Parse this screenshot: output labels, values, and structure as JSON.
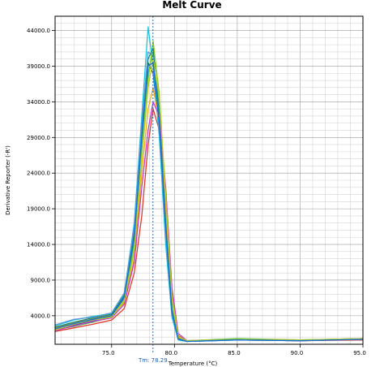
{
  "chart_data": {
    "type": "line",
    "title": "Melt Curve",
    "xlabel": "Temperature (°C)",
    "ylabel": "Derivative Reporter (-R')",
    "xlim": [
      70.5,
      95.0
    ],
    "ylim": [
      0,
      46000
    ],
    "x_ticks": [
      75.0,
      80.0,
      85.0,
      90.0,
      95.0
    ],
    "x_tick_labels": [
      "75.0",
      "80.0",
      "85.0",
      "90.0",
      "95.0"
    ],
    "y_ticks": [
      4000,
      9000,
      14000,
      19000,
      24000,
      29000,
      34000,
      39000,
      44000
    ],
    "y_tick_labels": [
      "4000.0",
      "9000.0",
      "14000.0",
      "19000.0",
      "24000.0",
      "29000.0",
      "34000.0",
      "39000.0",
      "44000.0"
    ],
    "grid": true,
    "legend": "none",
    "tm_marker": {
      "value": 78.29,
      "label": "Tm: 78.29"
    },
    "series": [
      {
        "color": "#2fbf3f",
        "x": [
          70.5,
          72,
          73.5,
          75,
          76,
          76.8,
          77.4,
          77.9,
          78.3,
          78.8,
          79.3,
          79.8,
          80.3,
          81,
          85,
          90,
          95
        ],
        "y": [
          2000,
          2500,
          3100,
          3800,
          6000,
          14500,
          28000,
          38000,
          41000,
          33000,
          18000,
          5000,
          800,
          500,
          800,
          600,
          800
        ]
      },
      {
        "color": "#3b3bbf",
        "x": [
          70.5,
          72,
          73.5,
          75,
          76,
          76.8,
          77.4,
          77.9,
          78.3,
          78.8,
          79.3,
          79.8,
          80.3,
          81,
          85,
          90,
          95
        ],
        "y": [
          2200,
          2700,
          3300,
          4000,
          6500,
          16000,
          30000,
          39500,
          38000,
          30000,
          16000,
          4500,
          700,
          400,
          700,
          500,
          700
        ]
      },
      {
        "color": "#e03a2a",
        "x": [
          70.5,
          72,
          73.5,
          75,
          76,
          76.8,
          77.4,
          77.9,
          78.3,
          78.8,
          79.3,
          79.8,
          80.3,
          81,
          85,
          90,
          95
        ],
        "y": [
          1800,
          2300,
          2800,
          3400,
          5000,
          10000,
          18000,
          28000,
          33000,
          30000,
          20000,
          7000,
          1200,
          500,
          600,
          500,
          600
        ]
      },
      {
        "color": "#19c4e0",
        "x": [
          70.5,
          72,
          73.5,
          75,
          76,
          76.8,
          77.4,
          77.9,
          78.3,
          78.8,
          79.3,
          79.8,
          80.3,
          81,
          85,
          90,
          95
        ],
        "y": [
          2600,
          3400,
          3900,
          4300,
          7000,
          17000,
          32000,
          44500,
          39000,
          29000,
          14000,
          3800,
          600,
          400,
          600,
          500,
          700
        ]
      },
      {
        "color": "#8ccf1e",
        "x": [
          70.5,
          72,
          73.5,
          75,
          76,
          76.8,
          77.4,
          77.9,
          78.3,
          78.8,
          79.3,
          79.8,
          80.3,
          81,
          85,
          90,
          95
        ],
        "y": [
          2100,
          2900,
          3500,
          3900,
          6200,
          13500,
          27000,
          37000,
          42500,
          35000,
          20000,
          6000,
          900,
          500,
          700,
          600,
          800
        ]
      },
      {
        "color": "#f0a91e",
        "x": [
          70.5,
          72,
          73.5,
          75,
          76,
          76.8,
          77.4,
          77.9,
          78.3,
          78.8,
          79.3,
          79.8,
          80.3,
          81,
          85,
          90,
          95
        ],
        "y": [
          2300,
          3000,
          3600,
          4100,
          5800,
          12000,
          24000,
          33000,
          36000,
          31000,
          19000,
          6500,
          1000,
          500,
          700,
          600,
          800
        ]
      },
      {
        "color": "#1f8a6a",
        "x": [
          70.5,
          72,
          73.5,
          75,
          76,
          76.8,
          77.4,
          77.9,
          78.3,
          78.8,
          79.3,
          79.8,
          80.3,
          81,
          85,
          90,
          95
        ],
        "y": [
          2400,
          3100,
          3700,
          4200,
          6800,
          15500,
          29500,
          40000,
          41500,
          32000,
          17000,
          4800,
          800,
          400,
          700,
          500,
          800
        ]
      },
      {
        "color": "#c43ad0",
        "x": [
          70.5,
          72,
          73.5,
          75,
          76,
          76.8,
          77.4,
          77.9,
          78.3,
          78.8,
          79.3,
          79.8,
          80.3,
          81,
          85,
          90,
          95
        ],
        "y": [
          1900,
          2600,
          3200,
          3700,
          5600,
          11500,
          22000,
          30000,
          34000,
          32000,
          22000,
          8000,
          1500,
          500,
          600,
          500,
          700
        ]
      },
      {
        "color": "#5b9ad6",
        "x": [
          70.5,
          72,
          73.5,
          75,
          76,
          76.8,
          77.4,
          77.9,
          78.3,
          78.8,
          79.3,
          79.8,
          80.3,
          81,
          85,
          90,
          95
        ],
        "y": [
          2700,
          3500,
          3800,
          4400,
          7200,
          16500,
          31000,
          41000,
          40500,
          30500,
          15500,
          4200,
          700,
          400,
          600,
          500,
          700
        ]
      },
      {
        "color": "#b8c92a",
        "x": [
          70.5,
          72,
          73.5,
          75,
          76,
          76.8,
          77.4,
          77.9,
          78.3,
          78.8,
          79.3,
          79.8,
          80.3,
          81,
          85,
          90,
          95
        ],
        "y": [
          2000,
          2800,
          3400,
          3800,
          6000,
          13000,
          26000,
          36000,
          40000,
          34500,
          21000,
          6800,
          1100,
          500,
          700,
          600,
          800
        ]
      },
      {
        "color": "#0f6fd8",
        "x": [
          70.5,
          72,
          73.5,
          75,
          76,
          76.8,
          77.4,
          77.9,
          78.3,
          78.8,
          79.3,
          79.8,
          80.3,
          81,
          85,
          90,
          95
        ],
        "y": [
          2200,
          2900,
          3500,
          4000,
          6600,
          15000,
          29000,
          39000,
          39500,
          31000,
          16500,
          4600,
          700,
          400,
          600,
          500,
          700
        ]
      }
    ]
  }
}
